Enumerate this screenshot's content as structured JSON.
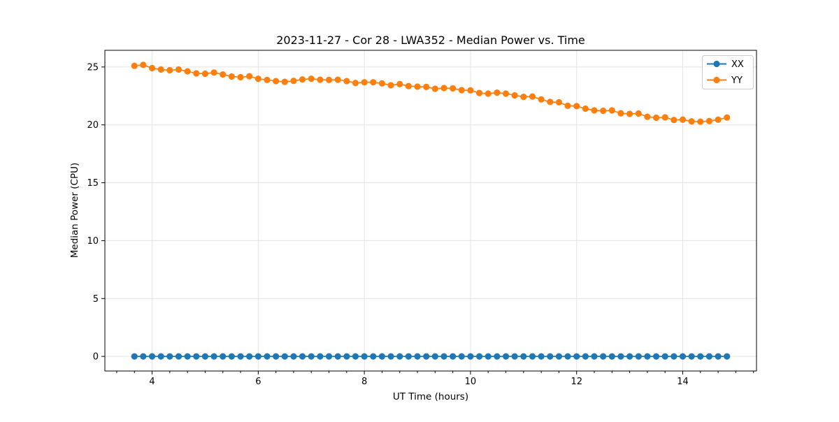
{
  "chart_data": {
    "type": "line",
    "title": "2023-11-27 - Cor 28 - LWA352 - Median Power vs. Time",
    "xlabel": "UT Time (hours)",
    "ylabel": "Median Power (CPU)",
    "xlim": [
      3.11,
      15.39
    ],
    "ylim": [
      -1.26,
      26.44
    ],
    "xticks": [
      4,
      6,
      8,
      10,
      12,
      14
    ],
    "yticks": [
      0,
      5,
      10,
      15,
      20,
      25
    ],
    "minor_xtick_step_hours": 0.33333,
    "grid": "major-on-light-gray",
    "legend_position": "upper-right",
    "background_color": "#ffffff",
    "grid_color": "#e3e3e3",
    "spine_color": "#000000",
    "x": [
      3.667,
      3.833,
      4.0,
      4.167,
      4.333,
      4.5,
      4.667,
      4.833,
      5.0,
      5.167,
      5.333,
      5.5,
      5.667,
      5.833,
      6.0,
      6.167,
      6.333,
      6.5,
      6.667,
      6.833,
      7.0,
      7.167,
      7.333,
      7.5,
      7.667,
      7.833,
      8.0,
      8.167,
      8.333,
      8.5,
      8.667,
      8.833,
      9.0,
      9.167,
      9.333,
      9.5,
      9.667,
      9.833,
      10.0,
      10.167,
      10.333,
      10.5,
      10.667,
      10.833,
      11.0,
      11.167,
      11.333,
      11.5,
      11.667,
      11.833,
      12.0,
      12.167,
      12.333,
      12.5,
      12.667,
      12.833,
      13.0,
      13.167,
      13.333,
      13.5,
      13.667,
      13.833,
      14.0,
      14.167,
      14.333,
      14.5,
      14.667,
      14.833
    ],
    "series": [
      {
        "name": "XX",
        "color": "#1f77b4",
        "values": [
          0,
          0,
          0,
          0,
          0,
          0,
          0,
          0,
          0,
          0,
          0,
          0,
          0,
          0,
          0,
          0,
          0,
          0,
          0,
          0,
          0,
          0,
          0,
          0,
          0,
          0,
          0,
          0,
          0,
          0,
          0,
          0,
          0,
          0,
          0,
          0,
          0,
          0,
          0,
          0,
          0,
          0,
          0,
          0,
          0,
          0,
          0,
          0,
          0,
          0,
          0,
          0,
          0,
          0,
          0,
          0,
          0,
          0,
          0,
          0,
          0,
          0,
          0,
          0,
          0,
          0,
          0,
          0
        ]
      },
      {
        "name": "YY",
        "color": "#ff7f0e",
        "values": [
          25.1,
          25.18,
          24.9,
          24.78,
          24.72,
          24.78,
          24.62,
          24.45,
          24.42,
          24.52,
          24.35,
          24.18,
          24.12,
          24.2,
          23.98,
          23.88,
          23.78,
          23.72,
          23.8,
          23.92,
          23.98,
          23.9,
          23.88,
          23.9,
          23.78,
          23.62,
          23.68,
          23.68,
          23.58,
          23.42,
          23.52,
          23.35,
          23.3,
          23.28,
          23.12,
          23.18,
          23.15,
          23.0,
          22.98,
          22.75,
          22.7,
          22.78,
          22.7,
          22.55,
          22.42,
          22.45,
          22.2,
          21.98,
          21.95,
          21.65,
          21.62,
          21.4,
          21.25,
          21.22,
          21.25,
          21.0,
          20.95,
          20.98,
          20.7,
          20.62,
          20.65,
          20.42,
          20.45,
          20.3,
          20.28,
          20.33,
          20.45,
          20.63
        ]
      }
    ]
  }
}
